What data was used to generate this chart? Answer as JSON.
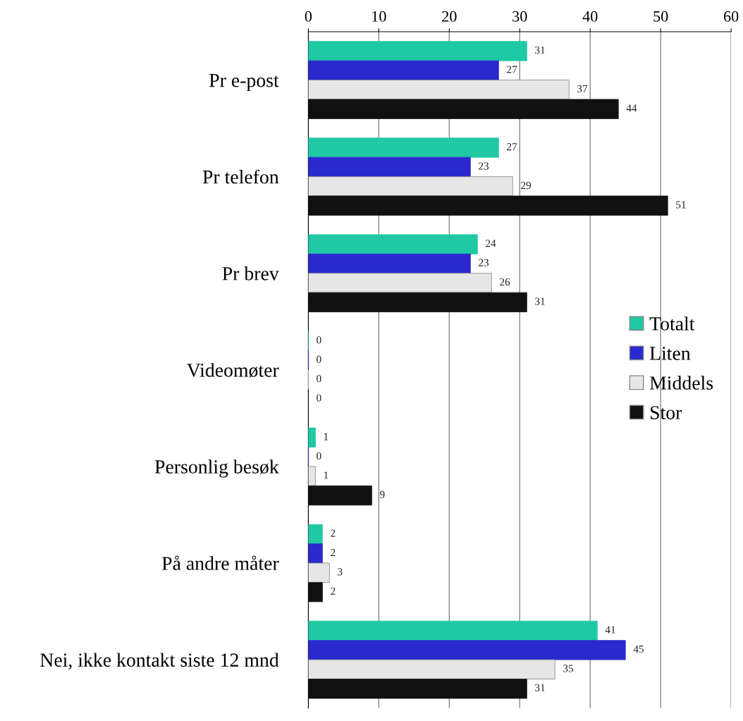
{
  "chart_data": {
    "type": "bar",
    "orientation": "horizontal",
    "categories": [
      "Pr e-post",
      "Pr telefon",
      "Pr brev",
      "Videomøter",
      "Personlig besøk",
      "På andre måter",
      "Nei, ikke kontakt siste 12 mnd"
    ],
    "series": [
      {
        "name": "Totalt",
        "color": "#1fc9a4",
        "values": [
          31,
          27,
          24,
          0,
          1,
          2,
          41
        ]
      },
      {
        "name": "Liten",
        "color": "#2a2acf",
        "values": [
          27,
          23,
          23,
          0,
          0,
          2,
          45
        ]
      },
      {
        "name": "Middels",
        "color": "#e6e6e6",
        "values": [
          37,
          29,
          26,
          0,
          1,
          3,
          35
        ]
      },
      {
        "name": "Stor",
        "color": "#111111",
        "values": [
          44,
          51,
          31,
          0,
          9,
          2,
          31
        ]
      }
    ],
    "xlim": [
      0,
      60
    ],
    "xticks": [
      0,
      10,
      20,
      30,
      40,
      50,
      60
    ],
    "grid": "x",
    "legend": "right",
    "data_labels": true
  }
}
